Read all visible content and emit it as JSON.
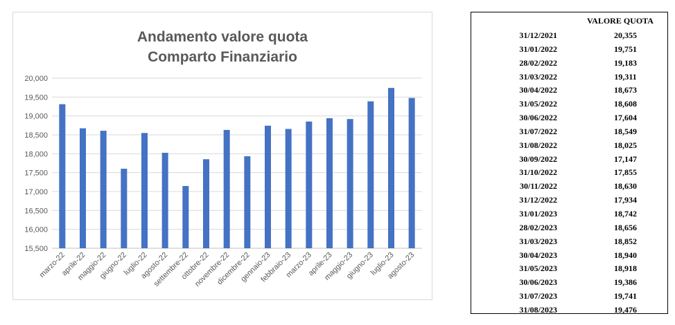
{
  "chart_data": {
    "type": "bar",
    "title": [
      "Andamento valore quota",
      "Comparto Finanziario"
    ],
    "categories": [
      "marzo-22",
      "aprile-22",
      "maggio-22",
      "giugno-22",
      "luglio-22",
      "agosto-22",
      "settembre-22",
      "ottobre-22",
      "novembre-22",
      "dicembre-22",
      "gennaio-23",
      "febbraio-23",
      "marzo-23",
      "aprile-23",
      "maggio-23",
      "giugno-23",
      "luglio-23",
      "agosto-23"
    ],
    "values": [
      19.311,
      18.673,
      18.608,
      17.604,
      18.549,
      18.025,
      17.147,
      17.855,
      18.63,
      17.934,
      18.742,
      18.656,
      18.852,
      18.94,
      18.918,
      19.386,
      19.741,
      19.476
    ],
    "ylim": [
      15.5,
      20.0
    ],
    "yticks": [
      "15,500",
      "16,000",
      "16,500",
      "17,000",
      "17,500",
      "18,000",
      "18,500",
      "19,000",
      "19,500",
      "20,000"
    ],
    "grid": true,
    "bar_color": "#4472C4"
  },
  "table": {
    "header": "VALORE QUOTA",
    "rows": [
      {
        "date": "31/12/2021",
        "value": "20,355"
      },
      {
        "date": "31/01/2022",
        "value": "19,751"
      },
      {
        "date": "28/02/2022",
        "value": "19,183"
      },
      {
        "date": "31/03/2022",
        "value": "19,311"
      },
      {
        "date": "30/04/2022",
        "value": "18,673"
      },
      {
        "date": "31/05/2022",
        "value": "18,608"
      },
      {
        "date": "30/06/2022",
        "value": "17,604"
      },
      {
        "date": "31/07/2022",
        "value": "18,549"
      },
      {
        "date": "31/08/2022",
        "value": "18,025"
      },
      {
        "date": "30/09/2022",
        "value": "17,147"
      },
      {
        "date": "31/10/2022",
        "value": "17,855"
      },
      {
        "date": "30/11/2022",
        "value": "18,630"
      },
      {
        "date": "31/12/2022",
        "value": "17,934"
      },
      {
        "date": "31/01/2023",
        "value": "18,742"
      },
      {
        "date": "28/02/2023",
        "value": "18,656"
      },
      {
        "date": "31/03/2023",
        "value": "18,852"
      },
      {
        "date": "30/04/2023",
        "value": "18,940"
      },
      {
        "date": "31/05/2023",
        "value": "18,918"
      },
      {
        "date": "30/06/2023",
        "value": "19,386"
      },
      {
        "date": "31/07/2023",
        "value": "19,741"
      },
      {
        "date": "31/08/2023",
        "value": "19,476"
      }
    ]
  }
}
